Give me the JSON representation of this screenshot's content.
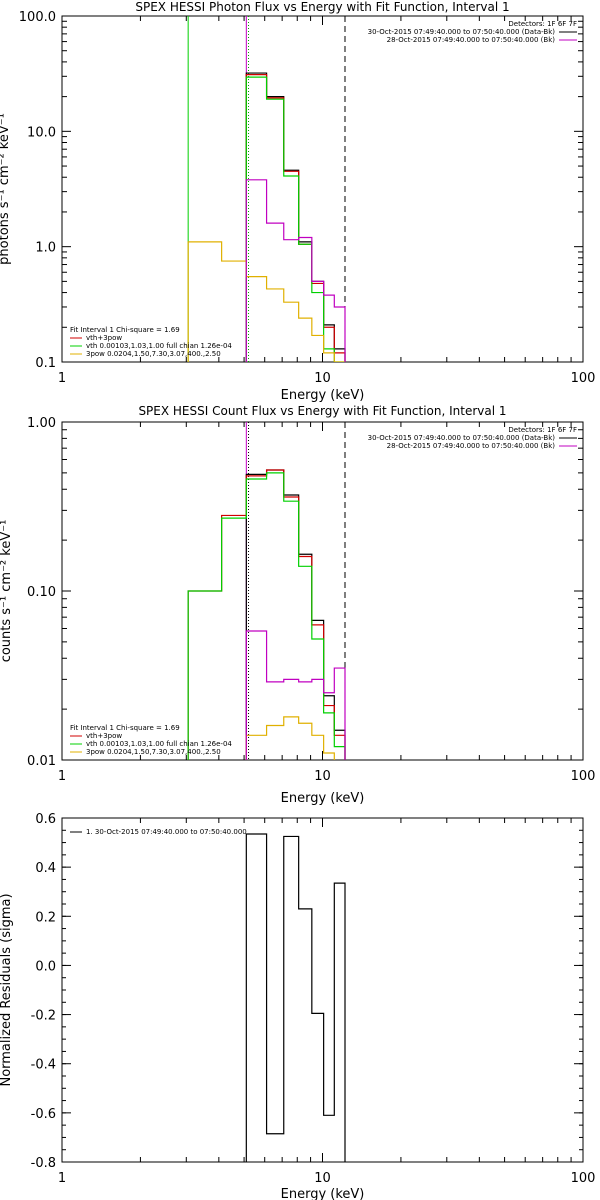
{
  "chart_data": [
    {
      "type": "line",
      "title": "SPEX HESSI Photon Flux vs Energy with Fit Function, Interval 1",
      "xlabel": "Energy (keV)",
      "ylabel": "photons s⁻¹ cm⁻² keV⁻¹",
      "xscale": "log",
      "yscale": "log",
      "xlim": [
        1,
        100
      ],
      "ylim": [
        0.1,
        100
      ],
      "x_tick_labels": [
        "1",
        "10",
        "100"
      ],
      "y_tick_labels": [
        "0.1",
        "1.0",
        "10.0",
        "100.0"
      ],
      "detectors": "Detectors: 1F 6F 7F",
      "time_labels": [
        {
          "text": "30-Oct-2015 07:49:40.000 to 07:50:40.000 (Data-Bk)",
          "color": "#000000"
        },
        {
          "text": "28-Oct-2015 07:49:40.000 to 07:50:40.000 (Bk)",
          "color": "#c000c0"
        }
      ],
      "legend": {
        "header": "Fit Interval 1   Chi-square = 1.69",
        "entries": [
          {
            "label": "vth+3pow",
            "color": "#d00000"
          },
          {
            "label": "vth 0.00103,1.03,1.00  full chian 1.26e-04",
            "color": "#00d000"
          },
          {
            "label": "3pow 0.0204,1.50,7.30,3.07,400.,2.50",
            "color": "#e0b000"
          }
        ]
      },
      "markers": [
        {
          "x": 3.05,
          "style": "solid",
          "color": "#00d000"
        },
        {
          "x": 5.2,
          "style": "dotted",
          "color": "#00a000"
        },
        {
          "x": 5.1,
          "style": "solid",
          "color": "#c000c0"
        },
        {
          "x": 12.2,
          "style": "dashed",
          "color": "#000000"
        }
      ],
      "bin_edges": [
        3.05,
        4.1,
        5.1,
        6.1,
        7.1,
        8.1,
        9.1,
        10.1,
        11.1,
        12.2
      ],
      "series": [
        {
          "name": "Data-Bk",
          "color": "#000000",
          "values": [
            null,
            null,
            32.0,
            20.0,
            4.6,
            1.1,
            0.5,
            0.21,
            0.13
          ]
        },
        {
          "name": "vth+3pow",
          "color": "#d00000",
          "values": [
            null,
            null,
            31.0,
            19.5,
            4.5,
            1.05,
            0.48,
            0.2,
            0.12
          ]
        },
        {
          "name": "vth",
          "color": "#00d000",
          "values": [
            null,
            null,
            29.5,
            19.0,
            4.1,
            1.05,
            0.4,
            0.13,
            0.1
          ]
        },
        {
          "name": "3pow",
          "color": "#e0b000",
          "values": [
            1.1,
            0.75,
            0.55,
            0.43,
            0.33,
            0.24,
            0.17,
            0.12,
            0.1
          ]
        },
        {
          "name": "Bk",
          "color": "#c000c0",
          "values": [
            null,
            null,
            3.8,
            1.6,
            1.15,
            1.2,
            0.5,
            0.38,
            0.3
          ]
        }
      ]
    },
    {
      "type": "line",
      "title": "SPEX HESSI Count Flux vs Energy with Fit Function, Interval 1",
      "xlabel": "Energy (keV)",
      "ylabel": "counts s⁻¹ cm⁻² keV⁻¹",
      "xscale": "log",
      "yscale": "log",
      "xlim": [
        1,
        100
      ],
      "ylim": [
        0.01,
        1.0
      ],
      "x_tick_labels": [
        "1",
        "10",
        "100"
      ],
      "y_tick_labels": [
        "0.01",
        "0.10",
        "1.00"
      ],
      "detectors": "Detectors: 1F 6F 7F",
      "time_labels": [
        {
          "text": "30-Oct-2015 07:49:40.000 to 07:50:40.000 (Data-Bk)",
          "color": "#000000"
        },
        {
          "text": "28-Oct-2015 07:49:40.000 to 07:50:40.000 (Bk)",
          "color": "#c000c0"
        }
      ],
      "legend": {
        "header": "Fit Interval 1   Chi-square = 1.69",
        "entries": [
          {
            "label": "vth+3pow",
            "color": "#d00000"
          },
          {
            "label": "vth 0.00103,1.03,1.00  full chian 1.26e-04",
            "color": "#00d000"
          },
          {
            "label": "3pow 0.0204,1.50,7.30,3.07,400.,2.50",
            "color": "#e0b000"
          }
        ]
      },
      "markers": [
        {
          "x": 5.2,
          "style": "dotted",
          "color": "#000000"
        },
        {
          "x": 5.1,
          "style": "solid",
          "color": "#c000c0"
        },
        {
          "x": 12.2,
          "style": "dashed",
          "color": "#000000"
        }
      ],
      "bin_edges": [
        3.05,
        4.1,
        5.1,
        6.1,
        7.1,
        8.1,
        9.1,
        10.1,
        11.1,
        12.2
      ],
      "series": [
        {
          "name": "Data-Bk",
          "color": "#000000",
          "values": [
            null,
            null,
            0.49,
            0.52,
            0.37,
            0.165,
            0.067,
            0.024,
            0.015
          ]
        },
        {
          "name": "vth+3pow",
          "color": "#d00000",
          "values": [
            0.1,
            0.28,
            0.48,
            0.52,
            0.36,
            0.16,
            0.063,
            0.021,
            0.014
          ]
        },
        {
          "name": "vth",
          "color": "#00d000",
          "values": [
            0.1,
            0.27,
            0.46,
            0.5,
            0.34,
            0.14,
            0.052,
            0.019,
            0.012
          ]
        },
        {
          "name": "3pow",
          "color": "#e0b000",
          "values": [
            null,
            null,
            0.014,
            0.016,
            0.018,
            0.0165,
            0.014,
            0.011,
            null
          ]
        },
        {
          "name": "Bk",
          "color": "#c000c0",
          "values": [
            null,
            null,
            0.058,
            0.029,
            0.03,
            0.029,
            0.03,
            0.025,
            0.035
          ]
        }
      ]
    },
    {
      "type": "line",
      "title": "",
      "xlabel": "Energy (keV)",
      "ylabel": "Normalized Residuals (sigma)",
      "xscale": "log",
      "yscale": "linear",
      "xlim": [
        1,
        100
      ],
      "ylim": [
        -0.8,
        0.6
      ],
      "x_tick_labels": [
        "1",
        "10",
        "100"
      ],
      "y_tick_labels": [
        "0.6",
        "0.4",
        "0.2",
        "0.0",
        "-0.2",
        "-0.4",
        "-0.6",
        "-0.8"
      ],
      "legend": {
        "entries": [
          {
            "label": "1. 30-Oct-2015 07:49:40.000 to 07:50:40.000",
            "color": "#000000"
          }
        ]
      },
      "bin_edges": [
        5.1,
        6.1,
        7.1,
        8.1,
        9.1,
        10.1,
        11.1,
        12.2
      ],
      "series": [
        {
          "name": "",
          "color": "#000000",
          "values": [
            0.535,
            -0.685,
            0.525,
            0.23,
            -0.195,
            -0.61,
            0.335
          ]
        }
      ]
    }
  ]
}
